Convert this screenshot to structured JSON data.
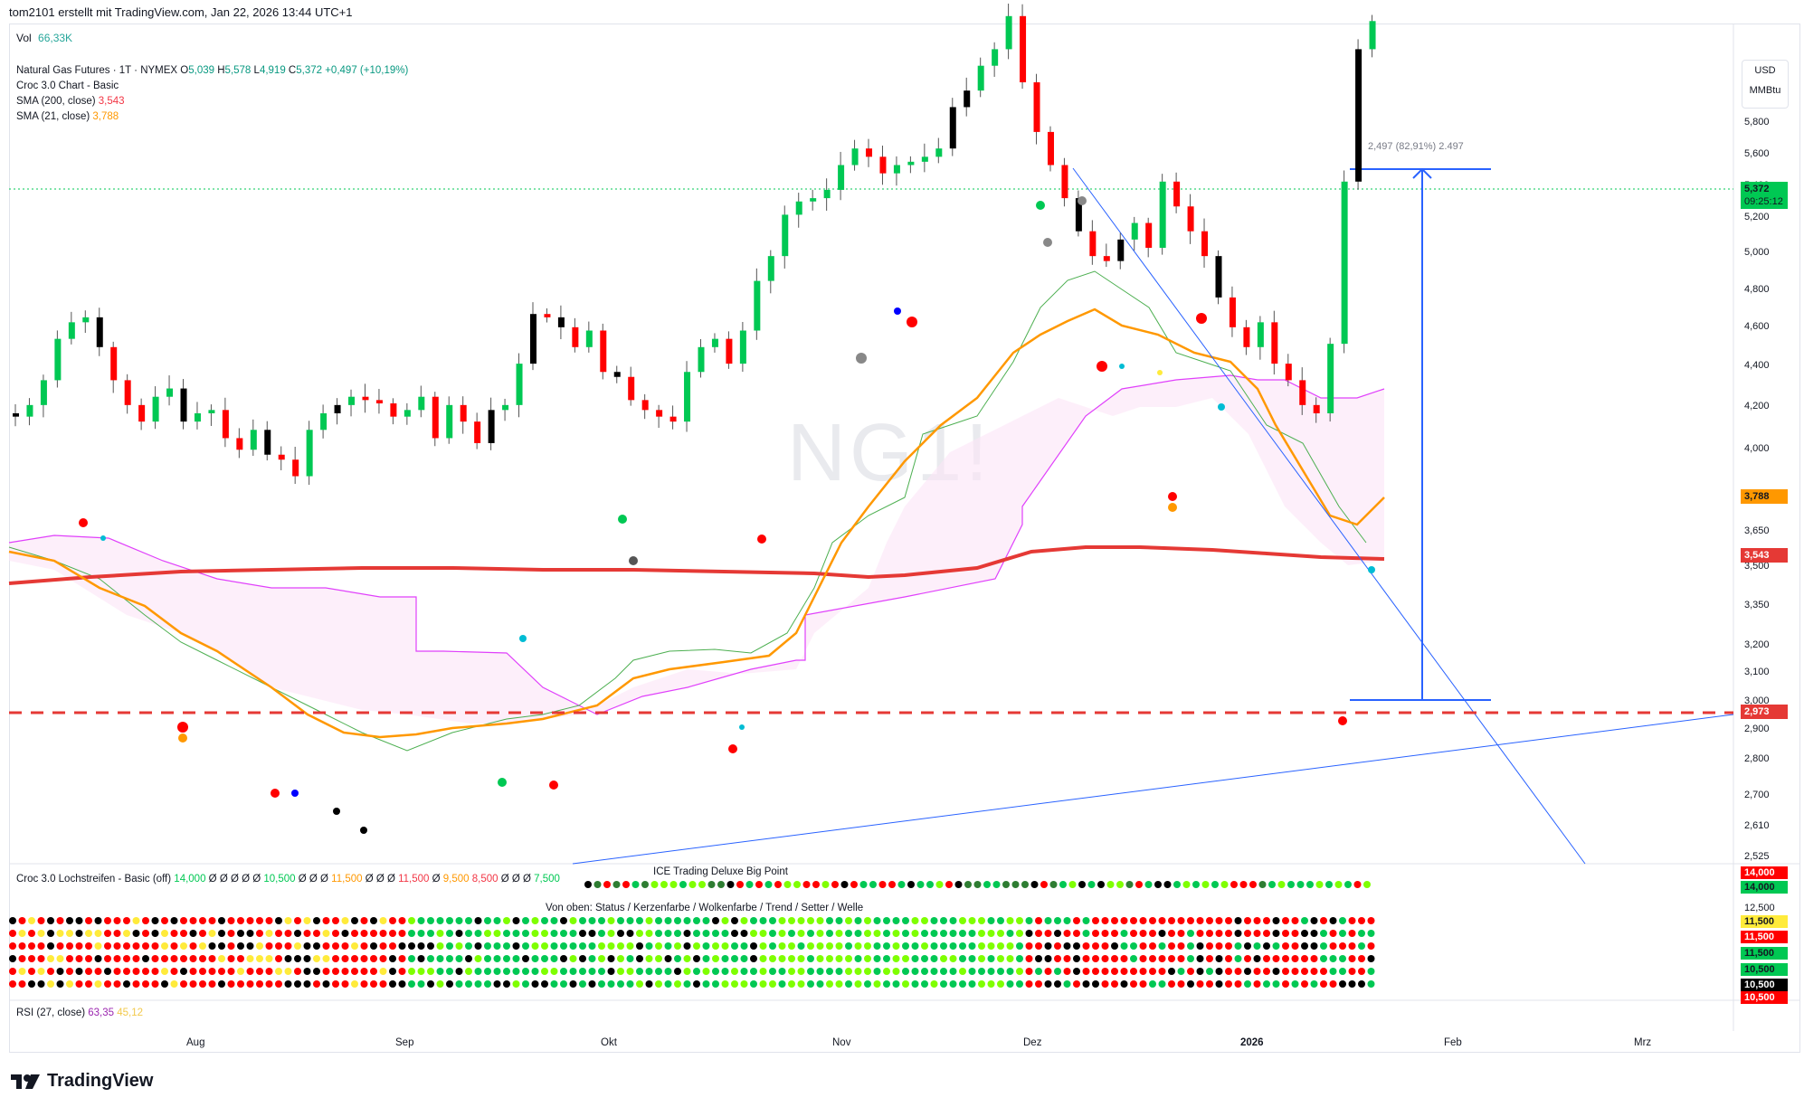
{
  "header": {
    "credit": "tom2101 erstellt mit TradingView.com, Jan 22, 2026 13:44 UTC+1"
  },
  "volume": {
    "label": "Vol",
    "value": "66,33K"
  },
  "legend": {
    "symbol": "Natural Gas Futures · 1T · NYMEX",
    "o_label": "O",
    "o_value": "5,039",
    "h_label": "H",
    "h_value": "5,578",
    "l_label": "L",
    "l_value": "4,919",
    "c_label": "C",
    "c_value": "5,372",
    "change": "+0,497 (+10,19%)",
    "indicator1": "Croc 3.0 Chart - Basic",
    "sma200_label": "SMA (200, close)",
    "sma200_value": "3,543",
    "sma21_label": "SMA (21, close)",
    "sma21_value": "3,788"
  },
  "watermark": "NG1!",
  "measure_label": "2,497 (82,91%) 2.497",
  "currency": {
    "line1": "USD",
    "line2": "MMBtu"
  },
  "price_axis": [
    "5,800",
    "5,600",
    "5,400",
    "5,200",
    "5,000",
    "4,800",
    "4,600",
    "4,400",
    "4,200",
    "4,000",
    "3,650",
    "3,500",
    "3,350",
    "3,200",
    "3,100",
    "3,000",
    "2,900",
    "2,800",
    "2,700",
    "2,610",
    "2,525"
  ],
  "price_tags": {
    "current": "5,372",
    "countdown": "09:25:12",
    "sma21": "3,788",
    "sma200": "3,543",
    "support": "2,973"
  },
  "colors": {
    "up": "#00c853",
    "down": "#ff0000",
    "neutral": "#000000",
    "sma200": "#e53935",
    "sma21": "#ff9800",
    "cloud_line": "#e040fb",
    "band": "#4caf50",
    "trendline": "#2962ff"
  },
  "strip_panel": {
    "title": "Croc 3.0 Lochstreifen - Basic (off)",
    "values": [
      "14,000",
      "Ø",
      "Ø",
      "Ø",
      "Ø",
      "Ø",
      "10,500",
      "Ø",
      "Ø",
      "Ø",
      "11,500",
      "Ø",
      "Ø",
      "Ø",
      "11,500",
      "Ø",
      "9,500",
      "8,500",
      "Ø",
      "Ø",
      "Ø",
      "7,500"
    ],
    "center_title": "ICE Trading Deluxe Big Point",
    "subtitle": "Von oben: Status / Kerzenfarbe / Wolkenfarbe / Trend / Setter / Welle",
    "axis": [
      "14,000",
      "14,000",
      "12,500",
      "11,500",
      "11,500",
      "11,500",
      "10,500",
      "10,500",
      "10,500"
    ]
  },
  "rsi": {
    "label": "RSI (27, close)",
    "value1": "63,35",
    "value2": "45,12"
  },
  "months": [
    "Aug",
    "Sep",
    "Okt",
    "Nov",
    "Dez",
    "2026",
    "Feb",
    "Mrz"
  ],
  "brand": "TradingView"
}
